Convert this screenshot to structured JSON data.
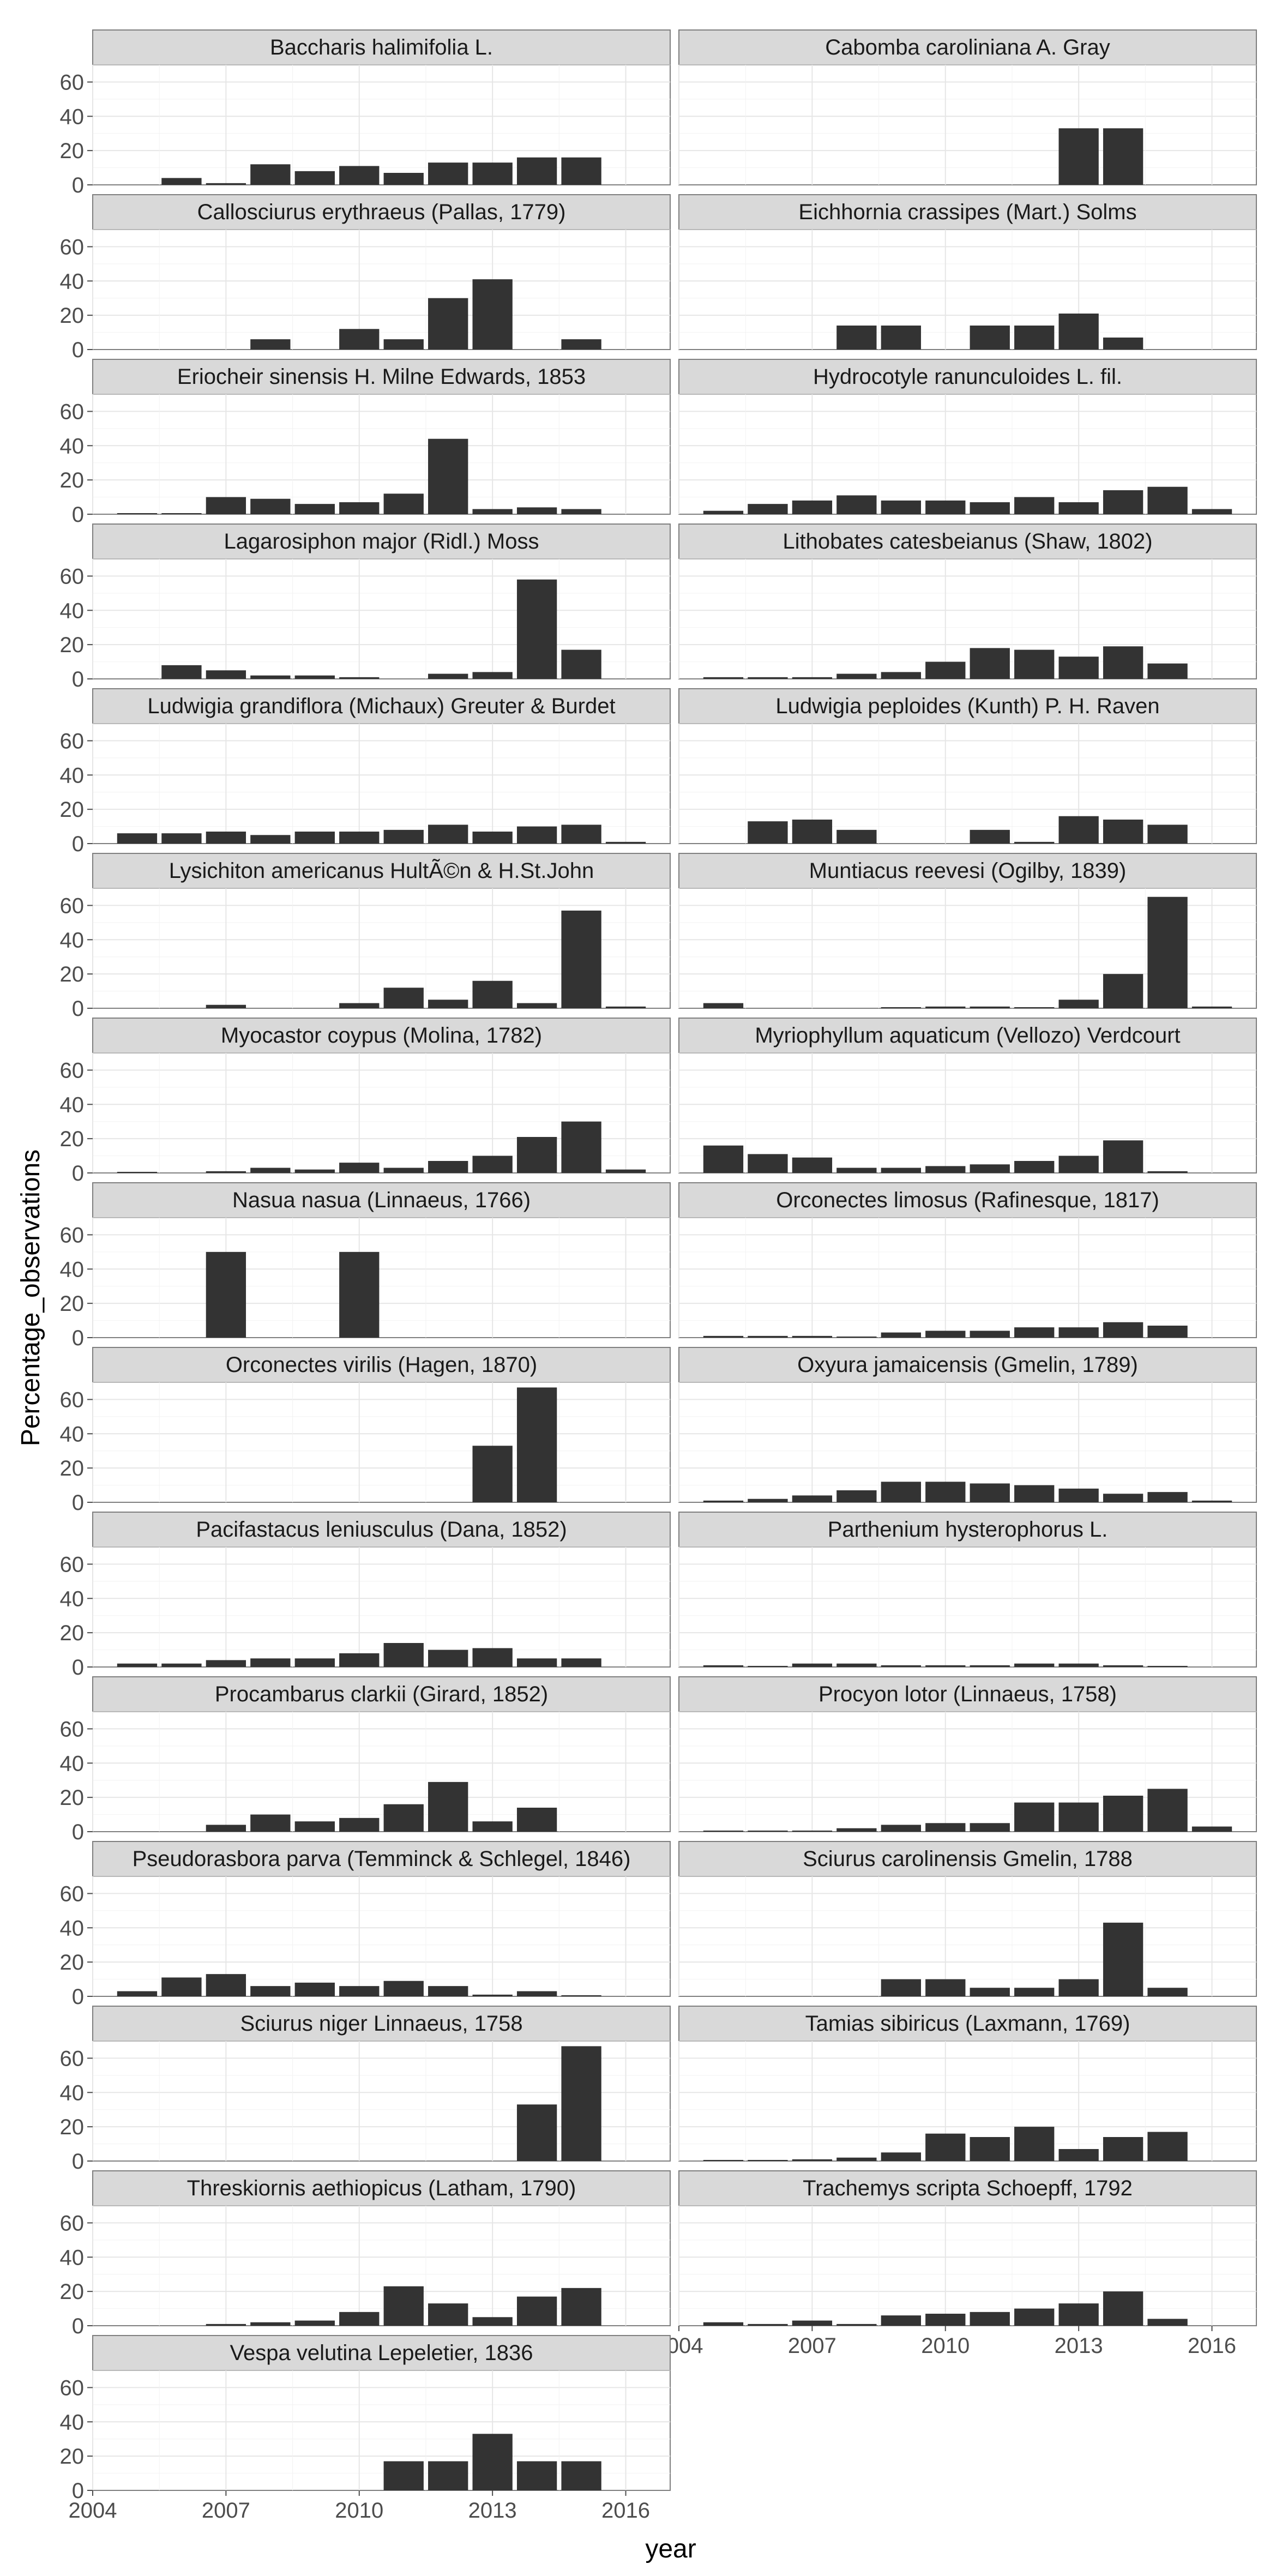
{
  "chart_data": {
    "type": "bar",
    "facet_layout": "wrap, 2 columns",
    "xlabel": "year",
    "ylabel": "Percentage_observations",
    "xlim": [
      2004,
      2017
    ],
    "ylim": [
      0,
      70
    ],
    "x_ticks": [
      "2004",
      "2007",
      "2010",
      "2013",
      "2016"
    ],
    "y_ticks": [
      "0",
      "20",
      "40",
      "60"
    ],
    "grid": true,
    "bar_color": "#333333",
    "panel_background": "#ffffff",
    "strip_background": "#d9d9d9",
    "years": [
      2005,
      2006,
      2007,
      2008,
      2009,
      2010,
      2011,
      2012,
      2013,
      2014,
      2015,
      2016
    ],
    "panels": [
      {
        "title": "Baccharis halimifolia L.",
        "values": [
          null,
          4,
          1,
          12,
          8,
          11,
          7,
          13,
          13,
          16,
          16,
          null
        ]
      },
      {
        "title": "Cabomba caroliniana A. Gray",
        "values": [
          null,
          null,
          null,
          null,
          null,
          null,
          null,
          null,
          33,
          33,
          null,
          null
        ]
      },
      {
        "title": "Callosciurus erythraeus (Pallas, 1779)",
        "values": [
          null,
          null,
          null,
          6,
          null,
          12,
          6,
          30,
          41,
          null,
          6,
          null
        ]
      },
      {
        "title": "Eichhornia crassipes (Mart.) Solms",
        "values": [
          null,
          null,
          null,
          14,
          14,
          null,
          14,
          14,
          21,
          7,
          null,
          null
        ]
      },
      {
        "title": "Eriocheir sinensis H. Milne Edwards, 1853",
        "values": [
          0.5,
          0.5,
          10,
          9,
          6,
          7,
          12,
          44,
          3,
          4,
          3,
          null
        ]
      },
      {
        "title": "Hydrocotyle ranunculoides L. fil.",
        "values": [
          2,
          6,
          8,
          11,
          8,
          8,
          7,
          10,
          7,
          14,
          16,
          3
        ]
      },
      {
        "title": "Lagarosiphon major (Ridl.) Moss",
        "values": [
          null,
          8,
          5,
          2,
          2,
          1,
          null,
          3,
          4,
          58,
          17,
          null
        ]
      },
      {
        "title": "Lithobates catesbeianus (Shaw, 1802)",
        "values": [
          1,
          1,
          1,
          3,
          4,
          10,
          18,
          17,
          13,
          19,
          9,
          null
        ]
      },
      {
        "title": "Ludwigia grandiflora (Michaux) Greuter & Burdet",
        "values": [
          6,
          6,
          7,
          5,
          7,
          7,
          8,
          11,
          7,
          10,
          11,
          1
        ]
      },
      {
        "title": "Ludwigia peploides (Kunth) P. H. Raven",
        "values": [
          null,
          13,
          14,
          8,
          null,
          null,
          8,
          1,
          16,
          14,
          11,
          null
        ]
      },
      {
        "title": "Lysichiton americanus HultÃ©n & H.St.John",
        "values": [
          null,
          null,
          2,
          null,
          null,
          3,
          12,
          5,
          16,
          3,
          57,
          1
        ]
      },
      {
        "title": "Muntiacus reevesi (Ogilby, 1839)",
        "values": [
          3,
          null,
          null,
          null,
          0.5,
          1,
          1,
          0.5,
          5,
          20,
          65,
          1
        ]
      },
      {
        "title": "Myocastor coypus (Molina, 1782)",
        "values": [
          0.5,
          null,
          1,
          3,
          2,
          6,
          3,
          7,
          10,
          21,
          30,
          2
        ]
      },
      {
        "title": "Myriophyllum aquaticum (Vellozo) Verdcourt",
        "values": [
          16,
          11,
          9,
          3,
          3,
          4,
          5,
          7,
          10,
          19,
          1,
          null
        ]
      },
      {
        "title": "Nasua nasua (Linnaeus, 1766)",
        "values": [
          null,
          null,
          50,
          null,
          null,
          50,
          null,
          null,
          null,
          null,
          null,
          null
        ]
      },
      {
        "title": "Orconectes limosus (Rafinesque, 1817)",
        "values": [
          1,
          1,
          1,
          0.5,
          3,
          4,
          4,
          6,
          6,
          9,
          7,
          null
        ]
      },
      {
        "title": "Orconectes virilis (Hagen, 1870)",
        "values": [
          null,
          null,
          null,
          null,
          null,
          null,
          null,
          null,
          33,
          67,
          null,
          null
        ]
      },
      {
        "title": "Oxyura jamaicensis (Gmelin, 1789)",
        "values": [
          1,
          2,
          4,
          7,
          12,
          12,
          11,
          10,
          8,
          5,
          6,
          1
        ]
      },
      {
        "title": "Pacifastacus leniusculus (Dana, 1852)",
        "values": [
          2,
          2,
          4,
          5,
          5,
          8,
          14,
          10,
          11,
          5,
          5,
          null
        ]
      },
      {
        "title": "Parthenium hysterophorus L.",
        "values": [
          1,
          0.5,
          2,
          2,
          1,
          1,
          1,
          2,
          2,
          1,
          0.5,
          null
        ]
      },
      {
        "title": "Procambarus clarkii (Girard, 1852)",
        "values": [
          null,
          null,
          4,
          10,
          6,
          8,
          16,
          29,
          6,
          14,
          null,
          null
        ]
      },
      {
        "title": "Procyon lotor (Linnaeus, 1758)",
        "values": [
          0.5,
          0.5,
          0.5,
          2,
          4,
          5,
          5,
          17,
          17,
          21,
          25,
          3
        ]
      },
      {
        "title": "Pseudorasbora parva (Temminck & Schlegel, 1846)",
        "values": [
          3,
          11,
          13,
          6,
          8,
          6,
          9,
          6,
          1,
          3,
          0.5,
          null
        ]
      },
      {
        "title": "Sciurus carolinensis Gmelin, 1788",
        "values": [
          null,
          null,
          null,
          null,
          10,
          10,
          5,
          5,
          10,
          43,
          5,
          null
        ]
      },
      {
        "title": "Sciurus niger Linnaeus, 1758",
        "values": [
          null,
          null,
          null,
          null,
          null,
          null,
          null,
          null,
          null,
          33,
          67,
          null
        ]
      },
      {
        "title": "Tamias sibiricus (Laxmann, 1769)",
        "values": [
          0.5,
          0.5,
          1,
          2,
          5,
          16,
          14,
          20,
          7,
          14,
          17,
          null
        ]
      },
      {
        "title": "Threskiornis aethiopicus (Latham, 1790)",
        "values": [
          null,
          null,
          1,
          2,
          3,
          8,
          23,
          13,
          5,
          17,
          22,
          null
        ]
      },
      {
        "title": "Trachemys scripta Schoepff, 1792",
        "values": [
          2,
          1,
          3,
          1,
          6,
          7,
          8,
          10,
          13,
          20,
          4,
          null
        ]
      },
      {
        "title": "Vespa velutina Lepeletier, 1836",
        "values": [
          null,
          null,
          null,
          null,
          null,
          null,
          17,
          17,
          33,
          17,
          17,
          null
        ]
      }
    ]
  }
}
